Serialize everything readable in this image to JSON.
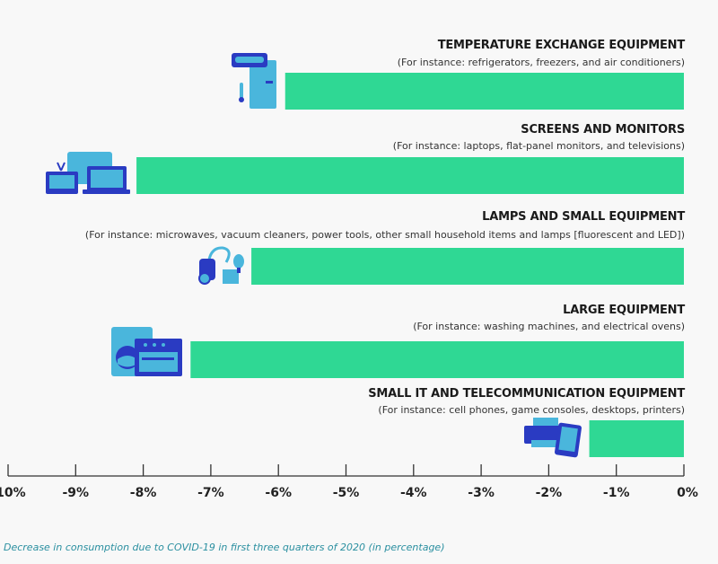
{
  "chart_data": {
    "type": "bar",
    "orientation": "horizontal",
    "categories": [
      {
        "title": "TEMPERATURE EXCHANGE EQUIPMENT",
        "subtitle": "(For instance: refrigerators, freezers, and air conditioners)",
        "icon": "fridge-air-conditioner-icon"
      },
      {
        "title": "SCREENS AND MONITORS",
        "subtitle": "(For instance: laptops, flat-panel monitors, and televisions)",
        "icon": "screens-laptop-tv-icon"
      },
      {
        "title": "LAMPS AND SMALL EQUIPMENT",
        "subtitle": "(For instance: microwaves, vacuum cleaners,  power tools, other small household items and lamps [fluorescent and LED])",
        "icon": "vacuum-lamp-icon"
      },
      {
        "title": "LARGE EQUIPMENT",
        "subtitle": "(For instance: washing machines, and electrical ovens)",
        "icon": "washing-machine-oven-icon"
      },
      {
        "title": "SMALL IT AND TELECOMMUNICATION EQUIPMENT",
        "subtitle": "(For instance: cell phones, game consoles, desktops, printers)",
        "icon": "printer-phone-icon"
      }
    ],
    "values": [
      -5.9,
      -8.1,
      -6.4,
      -7.3,
      -1.4
    ],
    "xlim": [
      -10,
      0
    ],
    "ticks": [
      "-10%",
      "-9%",
      "-8%",
      "-7%",
      "-6%",
      "-5%",
      "-4%",
      "-3%",
      "-2%",
      "-1%",
      "0%"
    ],
    "xlabel": "Decrease in consumption due to COVID-19 in first three quarters of 2020 (in percentage)",
    "grid": false,
    "colors": {
      "bar": "#2fd894",
      "icon_light": "#4ab6dc",
      "icon_dark": "#2a3bc2",
      "axis": "#333333",
      "caption": "#2a8fa0"
    }
  }
}
